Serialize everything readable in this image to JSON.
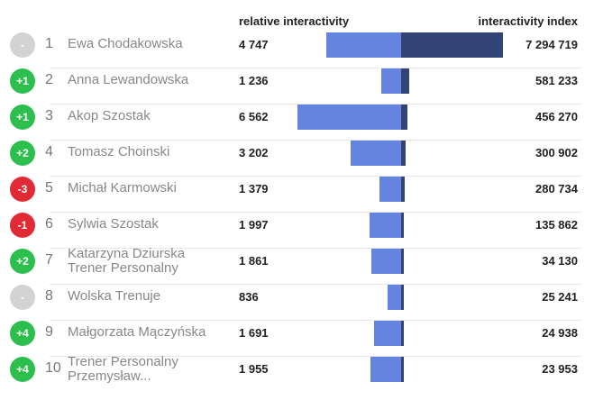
{
  "chart_data": {
    "type": "bar",
    "headers": {
      "relative": "relative interactivity",
      "index": "interactivity index"
    },
    "colors": {
      "relative": "#6584e0",
      "index": "#324476",
      "up": "#2dbf4e",
      "down": "#e02a35",
      "same": "#d3d3d3"
    },
    "rows": [
      {
        "change": "-",
        "dir": "same",
        "rank": "1",
        "name": [
          "Ewa Chodakowska"
        ],
        "relative": 4747,
        "relative_label": "4 747",
        "index": 7294719,
        "index_label": "7 294 719"
      },
      {
        "change": "+1",
        "dir": "up",
        "rank": "2",
        "name": [
          "Anna Lewandowska"
        ],
        "relative": 1236,
        "relative_label": "1 236",
        "index": 581233,
        "index_label": "581 233"
      },
      {
        "change": "+1",
        "dir": "up",
        "rank": "3",
        "name": [
          "Akop Szostak"
        ],
        "relative": 6562,
        "relative_label": "6 562",
        "index": 456270,
        "index_label": "456 270"
      },
      {
        "change": "+2",
        "dir": "up",
        "rank": "4",
        "name": [
          "Tomasz Choinski"
        ],
        "relative": 3202,
        "relative_label": "3 202",
        "index": 300902,
        "index_label": "300 902"
      },
      {
        "change": "-3",
        "dir": "down",
        "rank": "5",
        "name": [
          "Michał Karmowski"
        ],
        "relative": 1379,
        "relative_label": "1 379",
        "index": 280734,
        "index_label": "280 734"
      },
      {
        "change": "-1",
        "dir": "down",
        "rank": "6",
        "name": [
          "Sylwia Szostak"
        ],
        "relative": 1997,
        "relative_label": "1 997",
        "index": 135862,
        "index_label": "135 862"
      },
      {
        "change": "+2",
        "dir": "up",
        "rank": "7",
        "name": [
          "Katarzyna Dziurska",
          "Trener Personalny"
        ],
        "relative": 1861,
        "relative_label": "1 861",
        "index": 34130,
        "index_label": "34 130"
      },
      {
        "change": "-",
        "dir": "same",
        "rank": "8",
        "name": [
          "Wolska Trenuje"
        ],
        "relative": 836,
        "relative_label": "836",
        "index": 25241,
        "index_label": "25 241"
      },
      {
        "change": "+4",
        "dir": "up",
        "rank": "9",
        "name": [
          "Małgorzata Mączyńska"
        ],
        "relative": 1691,
        "relative_label": "1 691",
        "index": 24938,
        "index_label": "24 938"
      },
      {
        "change": "+4",
        "dir": "up",
        "rank": "10",
        "name": [
          "Trener Personalny",
          "Przemysław..."
        ],
        "relative": 1955,
        "relative_label": "1 955",
        "index": 23953,
        "index_label": "23 953"
      }
    ]
  }
}
